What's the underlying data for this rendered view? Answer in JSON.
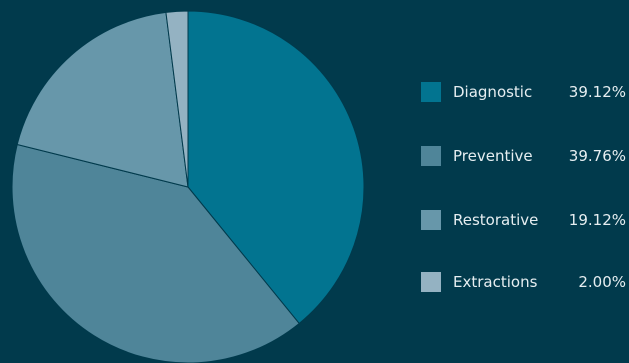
{
  "chart_data": {
    "type": "pie",
    "title": "",
    "categories": [
      "Diagnostic",
      "Preventive",
      "Restorative",
      "Extractions"
    ],
    "values": [
      39.12,
      39.76,
      19.12,
      2.0
    ],
    "value_labels": [
      "39.12%",
      "39.76%",
      "19.12%",
      "2.00%"
    ],
    "colors": [
      "#027490",
      "#4f8599",
      "#6797aa",
      "#94b2c2"
    ],
    "start_angle_deg": 0,
    "direction": "clockwise",
    "legend": {
      "placement": "right"
    }
  }
}
